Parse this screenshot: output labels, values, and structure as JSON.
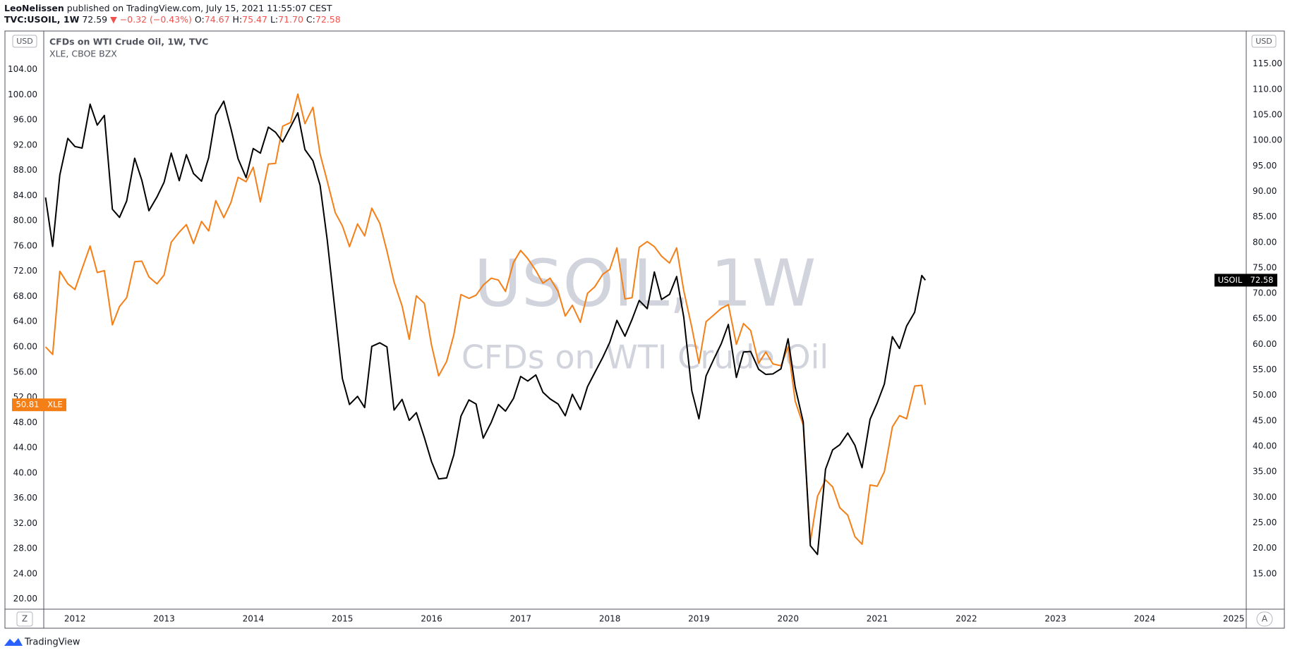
{
  "header": {
    "author": "LeoNelissen",
    "published": "published on TradingView.com, July 15, 2021 11:55:07 CEST",
    "symbol": "TVC:USOIL, 1W",
    "last": "72.59",
    "change": "▼ −0.32 (−0.43%)",
    "ohlc": [
      {
        "label": "O:",
        "value": "74.67"
      },
      {
        "label": "H:",
        "value": "75.47"
      },
      {
        "label": "L:",
        "value": "71.70"
      },
      {
        "label": "C:",
        "value": "72.58"
      }
    ]
  },
  "footer": {
    "brand": "TradingView",
    "left_button": "Z",
    "right_button": "A",
    "currency_left": "USD",
    "currency_right": "USD"
  },
  "chart_data": {
    "type": "line",
    "watermark_symbol": "USOIL, 1W",
    "watermark_description": "CFDs on WTI Crude Oil",
    "x": [
      2011.67,
      2011.75,
      2011.83,
      2011.92,
      2012.0,
      2012.08,
      2012.17,
      2012.25,
      2012.33,
      2012.42,
      2012.5,
      2012.58,
      2012.67,
      2012.75,
      2012.83,
      2012.92,
      2013.0,
      2013.08,
      2013.17,
      2013.25,
      2013.33,
      2013.42,
      2013.5,
      2013.58,
      2013.67,
      2013.75,
      2013.83,
      2013.92,
      2014.0,
      2014.08,
      2014.17,
      2014.25,
      2014.33,
      2014.42,
      2014.5,
      2014.58,
      2014.67,
      2014.75,
      2014.83,
      2014.92,
      2015.0,
      2015.08,
      2015.17,
      2015.25,
      2015.33,
      2015.42,
      2015.5,
      2015.58,
      2015.67,
      2015.75,
      2015.83,
      2015.92,
      2016.0,
      2016.08,
      2016.17,
      2016.25,
      2016.33,
      2016.42,
      2016.5,
      2016.58,
      2016.67,
      2016.75,
      2016.83,
      2016.92,
      2017.0,
      2017.08,
      2017.17,
      2017.25,
      2017.33,
      2017.42,
      2017.5,
      2017.58,
      2017.67,
      2017.75,
      2017.83,
      2017.92,
      2018.0,
      2018.08,
      2018.17,
      2018.25,
      2018.33,
      2018.42,
      2018.5,
      2018.58,
      2018.67,
      2018.75,
      2018.83,
      2018.92,
      2019.0,
      2019.08,
      2019.17,
      2019.25,
      2019.33,
      2019.42,
      2019.5,
      2019.58,
      2019.67,
      2019.75,
      2019.83,
      2019.92,
      2020.0,
      2020.08,
      2020.17,
      2020.25,
      2020.33,
      2020.42,
      2020.5,
      2020.58,
      2020.67,
      2020.75,
      2020.83,
      2020.92,
      2021.0,
      2021.08,
      2021.17,
      2021.25,
      2021.33,
      2021.42,
      2021.5,
      2021.54
    ],
    "series": [
      {
        "name": "USOIL",
        "description": "CFDs on WTI Crude Oil, 1W, TVC",
        "color": "#000000",
        "axis": "y2",
        "values": [
          88.8,
          79.2,
          93.2,
          100.4,
          98.8,
          98.5,
          107.1,
          103.0,
          104.9,
          86.5,
          84.9,
          88.1,
          96.5,
          92.2,
          86.2,
          88.9,
          91.8,
          97.5,
          92.1,
          97.2,
          93.5,
          92.0,
          96.6,
          105.0,
          107.7,
          102.3,
          96.4,
          92.7,
          98.4,
          97.5,
          102.6,
          101.6,
          99.7,
          102.7,
          105.4,
          98.2,
          96.0,
          91.2,
          80.5,
          66.2,
          53.3,
          48.2,
          49.8,
          47.6,
          59.6,
          60.3,
          59.5,
          47.1,
          49.2,
          45.1,
          46.6,
          41.7,
          37.0,
          33.6,
          33.8,
          38.3,
          45.9,
          49.1,
          48.3,
          41.6,
          44.7,
          48.2,
          46.9,
          49.4,
          53.7,
          52.8,
          54.0,
          50.6,
          49.3,
          48.3,
          46.0,
          50.2,
          47.2,
          51.7,
          54.4,
          57.4,
          60.4,
          64.7,
          61.6,
          64.9,
          68.6,
          67.0,
          74.2,
          68.8,
          69.8,
          73.3,
          65.3,
          50.9,
          45.4,
          53.8,
          57.2,
          60.1,
          63.9,
          53.5,
          58.5,
          58.6,
          55.1,
          54.1,
          54.2,
          55.2,
          61.1,
          51.6,
          44.8,
          20.5,
          18.8,
          35.5,
          39.3,
          40.3,
          42.6,
          40.2,
          35.8,
          45.3,
          48.5,
          52.2,
          61.5,
          59.2,
          63.6,
          66.3,
          73.5,
          72.58
        ]
      },
      {
        "name": "XLE",
        "description": "XLE, CBOE BZX",
        "color": "#f57f17",
        "axis": "y",
        "values": [
          60.0,
          58.8,
          72.0,
          70.0,
          69.1,
          72.4,
          76.0,
          71.8,
          72.1,
          63.5,
          66.4,
          67.8,
          73.5,
          73.6,
          71.1,
          70.0,
          71.4,
          76.6,
          78.2,
          79.4,
          76.4,
          79.9,
          78.4,
          83.2,
          80.5,
          82.9,
          86.9,
          86.2,
          88.5,
          83.0,
          89.0,
          89.1,
          95.0,
          95.6,
          100.1,
          95.4,
          98.0,
          90.6,
          86.3,
          81.3,
          79.2,
          75.9,
          79.5,
          77.6,
          82.0,
          79.6,
          75.2,
          70.3,
          66.5,
          61.2,
          68.1,
          66.9,
          60.3,
          55.4,
          57.7,
          61.9,
          68.3,
          67.7,
          68.2,
          69.8,
          70.9,
          70.6,
          68.8,
          73.4,
          75.3,
          74.0,
          72.1,
          70.1,
          70.9,
          68.8,
          64.9,
          66.6,
          63.9,
          68.5,
          69.5,
          71.5,
          72.3,
          75.7,
          67.6,
          67.8,
          75.8,
          76.7,
          75.9,
          74.4,
          73.3,
          75.7,
          68.9,
          63.1,
          57.4,
          64.0,
          65.1,
          66.1,
          66.7,
          60.4,
          63.7,
          62.6,
          57.4,
          59.2,
          57.3,
          57.0,
          60.0,
          51.4,
          47.6,
          29.1,
          36.3,
          38.9,
          37.8,
          34.5,
          33.3,
          29.9,
          28.7,
          38.1,
          37.9,
          40.2,
          47.3,
          49.1,
          48.6,
          53.8,
          53.9,
          50.81
        ]
      }
    ],
    "xlim": [
      2011.65,
      2025.14
    ],
    "xticks": [
      2012,
      2013,
      2014,
      2015,
      2016,
      2017,
      2018,
      2019,
      2020,
      2021,
      2022,
      2023,
      2024,
      2025
    ],
    "ylim": [
      18.4,
      110.1
    ],
    "yticks": [
      {
        "value": 20,
        "label": "20.00"
      },
      {
        "value": 24,
        "label": "24.00"
      },
      {
        "value": 28,
        "label": "28.00"
      },
      {
        "value": 32,
        "label": "32.00"
      },
      {
        "value": 36,
        "label": "36.00"
      },
      {
        "value": 40,
        "label": "40.00"
      },
      {
        "value": 44,
        "label": "44.00"
      },
      {
        "value": 48,
        "label": "48.00"
      },
      {
        "value": 52,
        "label": "52.00"
      },
      {
        "value": 56,
        "label": "56.00"
      },
      {
        "value": 60,
        "label": "60.00"
      },
      {
        "value": 64,
        "label": "64.00"
      },
      {
        "value": 68,
        "label": "68.00"
      },
      {
        "value": 72,
        "label": "72.00"
      },
      {
        "value": 76,
        "label": "76.00"
      },
      {
        "value": 80,
        "label": "80.00"
      },
      {
        "value": 84,
        "label": "84.00"
      },
      {
        "value": 88,
        "label": "88.00"
      },
      {
        "value": 92,
        "label": "92.00"
      },
      {
        "value": 96,
        "label": "96.00"
      },
      {
        "value": 100,
        "label": "100.00"
      },
      {
        "value": 104,
        "label": "104.00"
      }
    ],
    "y2lim": [
      8.06,
      121.45
    ],
    "y2ticks": [
      {
        "value": 15,
        "label": "15.00"
      },
      {
        "value": 20,
        "label": "20.00"
      },
      {
        "value": 25,
        "label": "25.00"
      },
      {
        "value": 30,
        "label": "30.00"
      },
      {
        "value": 35,
        "label": "35.00"
      },
      {
        "value": 40,
        "label": "40.00"
      },
      {
        "value": 45,
        "label": "45.00"
      },
      {
        "value": 50,
        "label": "50.00"
      },
      {
        "value": 55,
        "label": "55.00"
      },
      {
        "value": 60,
        "label": "60.00"
      },
      {
        "value": 65,
        "label": "65.00"
      },
      {
        "value": 70,
        "label": "70.00"
      },
      {
        "value": 75,
        "label": "75.00"
      },
      {
        "value": 80,
        "label": "80.00"
      },
      {
        "value": 85,
        "label": "85.00"
      },
      {
        "value": 90,
        "label": "90.00"
      },
      {
        "value": 95,
        "label": "95.00"
      },
      {
        "value": 100,
        "label": "100.00"
      },
      {
        "value": 105,
        "label": "105.00"
      },
      {
        "value": 110,
        "label": "110.00"
      },
      {
        "value": 115,
        "label": "115.00"
      }
    ],
    "grid": false
  }
}
